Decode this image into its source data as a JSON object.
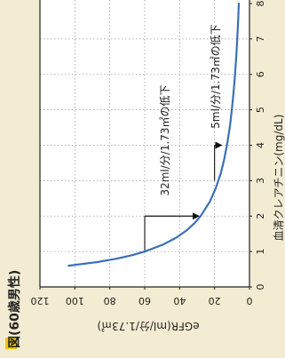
{
  "figure": {
    "label_box_color": "#f2c315",
    "title": "図(60歳男性)"
  },
  "chart_data": {
    "type": "line",
    "xlabel": "血清クレアチニン(mg/dL)",
    "ylabel": "eGFR(ml/分/1.73㎡)",
    "xlim": [
      0,
      8
    ],
    "ylim": [
      0,
      120
    ],
    "x_ticks": [
      "0",
      "1",
      "2",
      "3",
      "4",
      "5",
      "6",
      "7",
      "8"
    ],
    "y_ticks": [
      "0",
      "20",
      "40",
      "60",
      "80",
      "100",
      "120"
    ],
    "grid": true,
    "series": [
      {
        "color": "#3a6fb6",
        "points": [
          [
            0.6,
            103.6
          ],
          [
            0.7,
            87.5
          ],
          [
            0.8,
            75.8
          ],
          [
            0.9,
            66.9
          ],
          [
            1.0,
            59.9
          ],
          [
            1.2,
            49.2
          ],
          [
            1.4,
            41.7
          ],
          [
            1.6,
            35.9
          ],
          [
            1.8,
            31.5
          ],
          [
            2.0,
            28.0
          ],
          [
            2.4,
            22.8
          ],
          [
            2.8,
            19.2
          ],
          [
            3.2,
            16.5
          ],
          [
            3.6,
            14.5
          ],
          [
            4.0,
            12.9
          ],
          [
            4.5,
            11.3
          ],
          [
            5.0,
            10.1
          ],
          [
            5.5,
            9.1
          ],
          [
            6.0,
            8.3
          ],
          [
            6.5,
            7.6
          ],
          [
            7.0,
            7.0
          ],
          [
            7.5,
            6.5
          ],
          [
            8.0,
            6.1
          ]
        ]
      }
    ],
    "annotations": [
      {
        "text": "32ml/分/1.73㎡の低下",
        "from": [
          1.0,
          60
        ],
        "to": [
          2.0,
          28
        ]
      },
      {
        "text": "5ml/分/1.73㎡の低下",
        "from": [
          3.0,
          20
        ],
        "to": [
          4.0,
          15
        ]
      }
    ]
  }
}
